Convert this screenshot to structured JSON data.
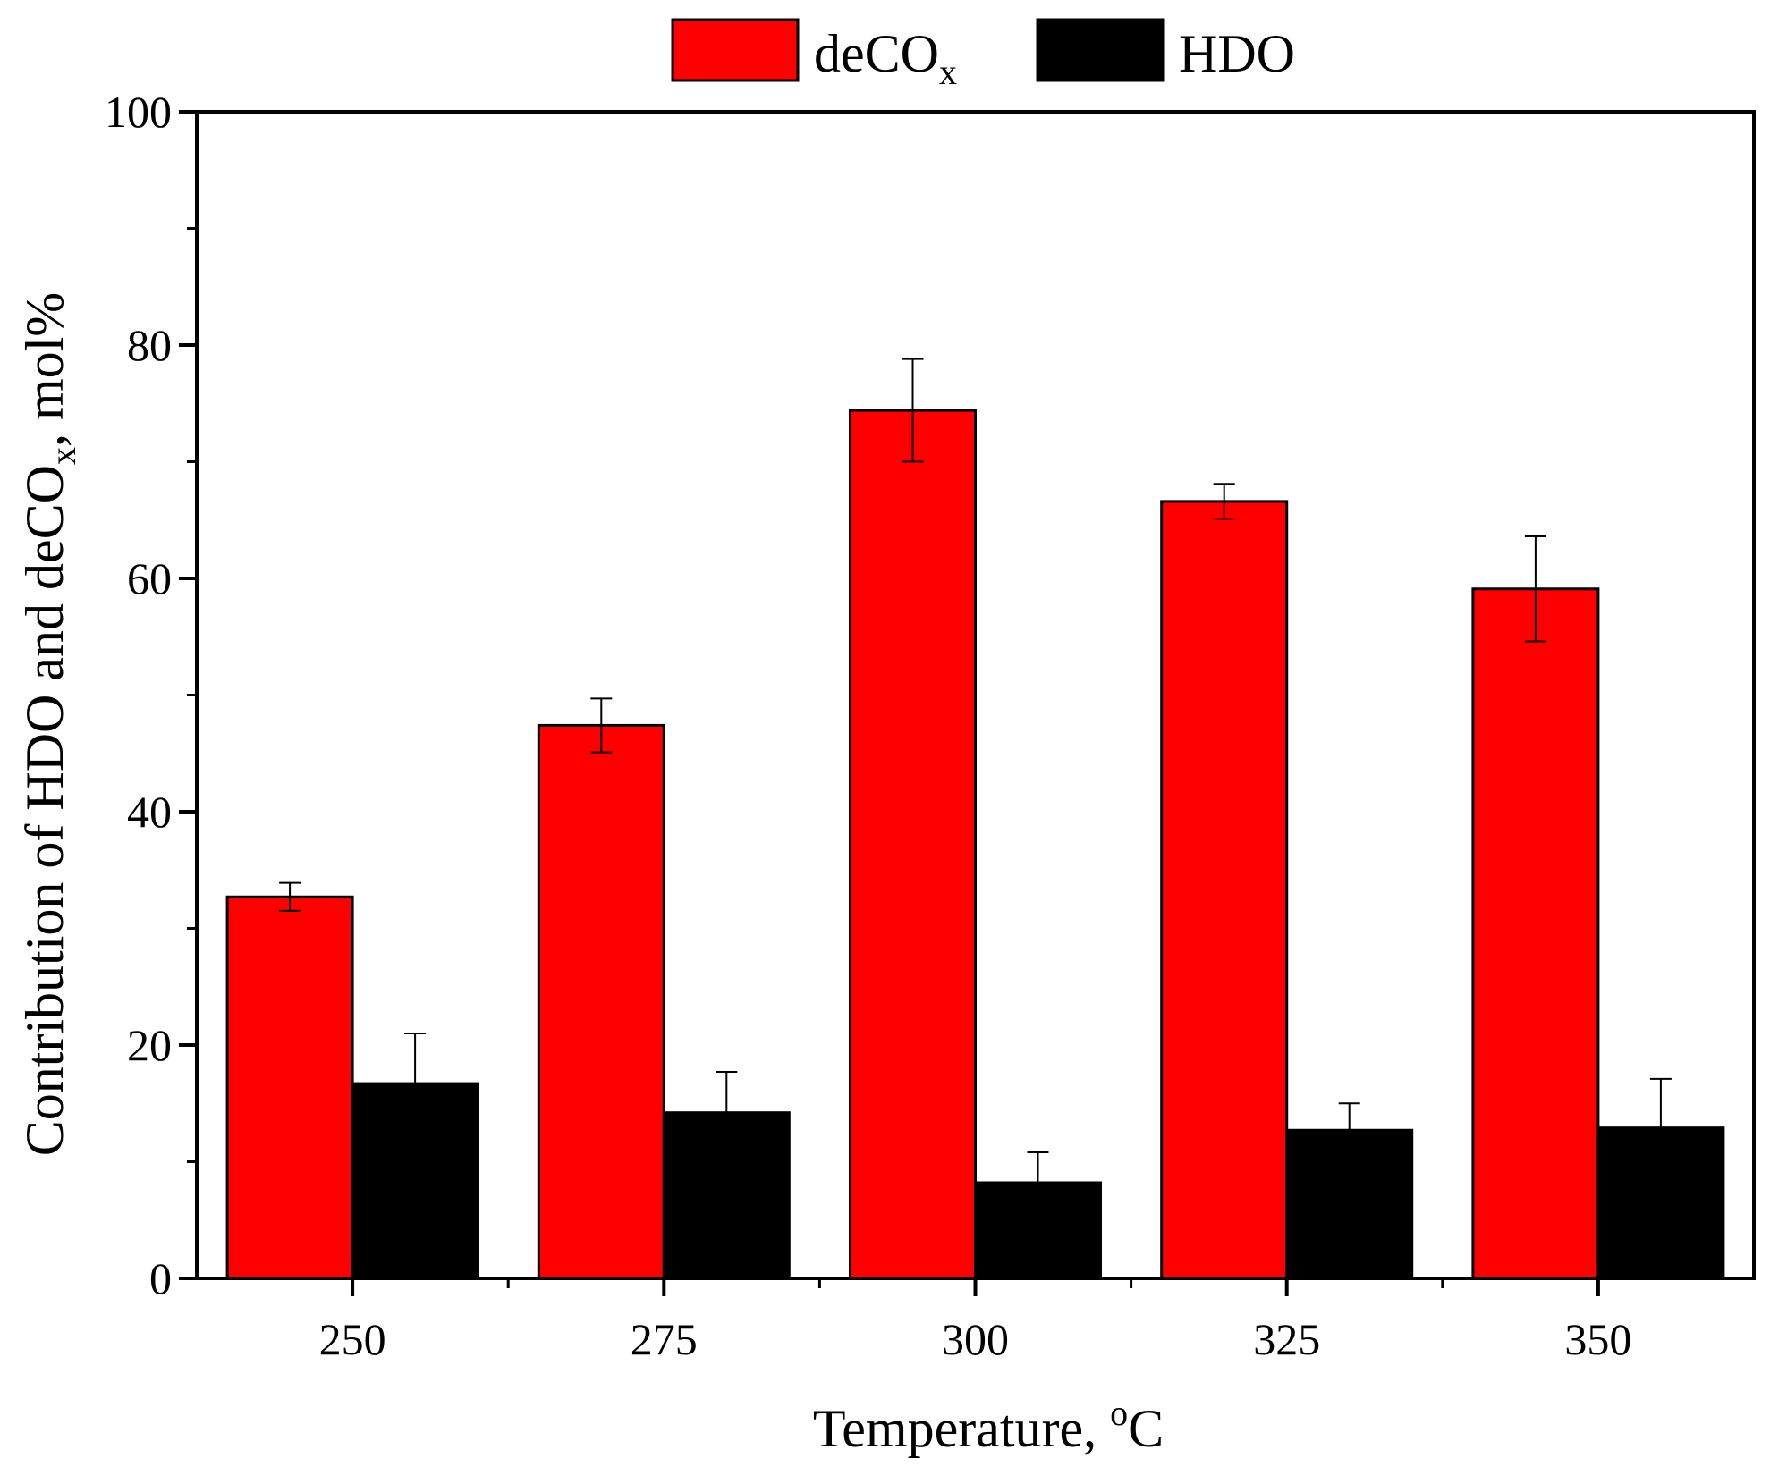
{
  "chart_data": {
    "type": "bar",
    "title": "",
    "xlabel": "Temperature, ",
    "xlabel_super": "o",
    "xlabel_tail": "C",
    "ylabel": "Contribution of HDO and deCO",
    "ylabel_sub": "x",
    "ylabel_tail": ", mol%",
    "categories": [
      "250",
      "275",
      "300",
      "325",
      "350"
    ],
    "ylim": [
      0,
      100
    ],
    "yticks": [
      0,
      20,
      40,
      60,
      80,
      100
    ],
    "grid": false,
    "legend_position": "top-center",
    "series": [
      {
        "name": "deCO",
        "name_sub": "x",
        "color": "#ff0000",
        "values": [
          32.7,
          47.4,
          74.4,
          66.6,
          59.1
        ],
        "errors": [
          1.2,
          2.3,
          4.4,
          1.5,
          4.5
        ]
      },
      {
        "name": "HDO",
        "name_sub": "",
        "color": "#000000",
        "values": [
          16.7,
          14.2,
          8.2,
          12.7,
          12.9
        ],
        "errors": [
          4.3,
          3.5,
          2.6,
          2.3,
          4.2
        ]
      }
    ]
  }
}
